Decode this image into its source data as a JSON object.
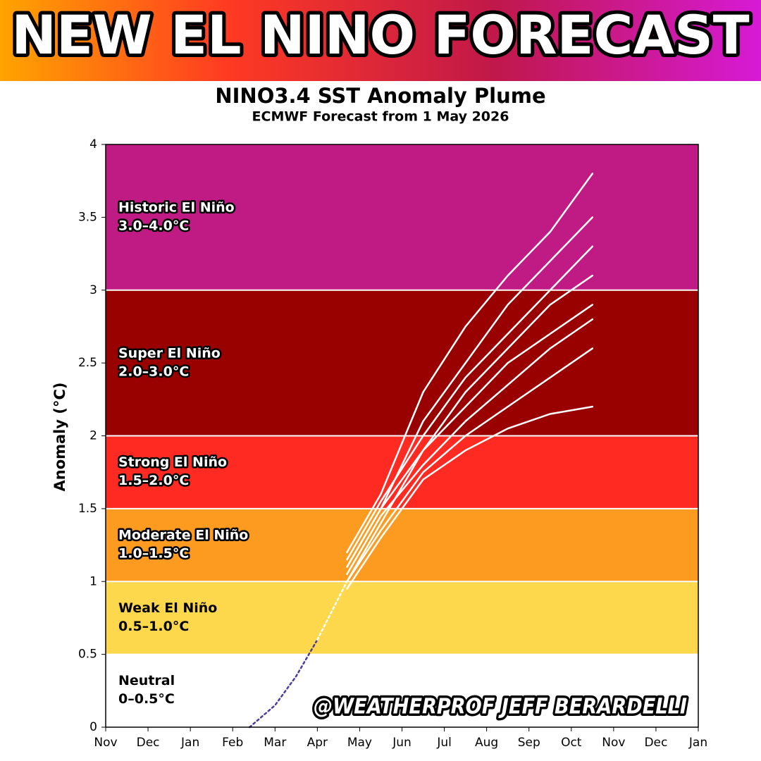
{
  "header": {
    "title": "NEW EL NINO FORECAST"
  },
  "chart_data": {
    "type": "line",
    "title": "NINO3.4 SST Anomaly Plume",
    "subtitle": "ECMWF Forecast from 1 May 2026",
    "y_label": "Anomaly (°C)",
    "xlim": [
      0,
      14
    ],
    "xticks": [
      {
        "value": 0,
        "label": "Nov"
      },
      {
        "value": 1,
        "label": "Dec"
      },
      {
        "value": 2,
        "label": "Jan"
      },
      {
        "value": 3,
        "label": "Feb"
      },
      {
        "value": 4,
        "label": "Mar"
      },
      {
        "value": 5,
        "label": "Apr"
      },
      {
        "value": 6,
        "label": "May"
      },
      {
        "value": 7,
        "label": "Jun"
      },
      {
        "value": 8,
        "label": "Jul"
      },
      {
        "value": 9,
        "label": "Aug"
      },
      {
        "value": 10,
        "label": "Sep"
      },
      {
        "value": 11,
        "label": "Oct"
      },
      {
        "value": 12,
        "label": "Nov"
      },
      {
        "value": 13,
        "label": "Dec"
      },
      {
        "value": 14,
        "label": "Jan"
      }
    ],
    "ylim": [
      0,
      4
    ],
    "yticks": [
      0,
      0.5,
      1,
      1.5,
      2,
      2.5,
      3,
      3.5,
      4
    ],
    "bands": [
      {
        "label": "Historic El Niño",
        "range_label": "3.0–4.0°C",
        "range": [
          3,
          4
        ],
        "color": "#c01a84",
        "text_color": "#ffffff"
      },
      {
        "label": "Super El Niño",
        "range_label": "2.0–3.0°C",
        "range": [
          2,
          3
        ],
        "color": "#990000",
        "text_color": "#ffffff"
      },
      {
        "label": "Strong El Niño",
        "range_label": "1.5–2.0°C",
        "range": [
          1.5,
          2
        ],
        "color": "#ff2b22",
        "text_color": "#ffffff"
      },
      {
        "label": "Moderate El Niño",
        "range_label": "1.0–1.5°C",
        "range": [
          1,
          1.5
        ],
        "color": "#fc9b1f",
        "text_color": "#ffffff"
      },
      {
        "label": "Weak El Niño",
        "range_label": "0.5–1.0°C",
        "range": [
          0.5,
          1
        ],
        "color": "#fdd84c",
        "text_color": "#000000"
      },
      {
        "label": "Neutral",
        "range_label": "0–0.5°C",
        "range": [
          0,
          0.5
        ],
        "color": "#ffffff",
        "text_color": "#000000"
      }
    ],
    "series": [
      {
        "color": "#4b3ca0",
        "dashed": true,
        "x": [
          3.4,
          4,
          4.5,
          5
        ],
        "values": [
          0,
          0.15,
          0.35,
          0.6
        ]
      },
      {
        "color": "#ffffff",
        "dashed": true,
        "x": [
          5,
          5.7
        ],
        "values": [
          0.6,
          1.0
        ]
      },
      {
        "color": "#ffffff",
        "x": [
          5.7,
          6.5,
          7.5,
          8.5,
          9.5,
          10.5,
          11.5
        ],
        "values": [
          1.2,
          1.6,
          2.3,
          2.75,
          3.1,
          3.4,
          3.8
        ]
      },
      {
        "color": "#ffffff",
        "x": [
          5.7,
          6.5,
          7.5,
          8.5,
          9.5,
          10.5,
          11.5
        ],
        "values": [
          1.1,
          1.5,
          2.1,
          2.5,
          2.9,
          3.2,
          3.5
        ]
      },
      {
        "color": "#ffffff",
        "x": [
          5.7,
          6.5,
          7.5,
          8.5,
          9.5,
          10.5,
          11.5
        ],
        "values": [
          1.0,
          1.4,
          1.9,
          2.3,
          2.6,
          2.9,
          3.1
        ]
      },
      {
        "color": "#ffffff",
        "x": [
          5.7,
          6.5,
          7.5,
          8.5,
          9.5,
          10.5,
          11.5
        ],
        "values": [
          1.1,
          1.5,
          1.9,
          2.2,
          2.5,
          2.7,
          2.9
        ]
      },
      {
        "color": "#ffffff",
        "x": [
          5.7,
          6.5,
          7.5,
          8.5,
          9.5,
          10.5,
          11.5
        ],
        "values": [
          1.0,
          1.35,
          1.75,
          2.0,
          2.2,
          2.4,
          2.6
        ]
      },
      {
        "color": "#ffffff",
        "x": [
          5.7,
          6.5,
          7.5,
          8.5,
          9.5,
          10.5,
          11.5
        ],
        "values": [
          0.95,
          1.3,
          1.7,
          1.9,
          2.05,
          2.15,
          2.2
        ]
      },
      {
        "color": "#ffffff",
        "x": [
          5.7,
          6.5,
          7.5,
          8.5,
          9.5,
          10.5,
          11.5
        ],
        "values": [
          1.05,
          1.45,
          1.8,
          2.1,
          2.35,
          2.6,
          2.8
        ]
      },
      {
        "color": "#ffffff",
        "x": [
          5.7,
          6.5,
          7.5,
          8.5,
          9.5,
          10.5,
          11.5
        ],
        "values": [
          1.15,
          1.55,
          2.0,
          2.4,
          2.7,
          3.0,
          3.3
        ]
      }
    ],
    "watermark": "@WEATHERPROF JEFF BERARDELLI"
  }
}
